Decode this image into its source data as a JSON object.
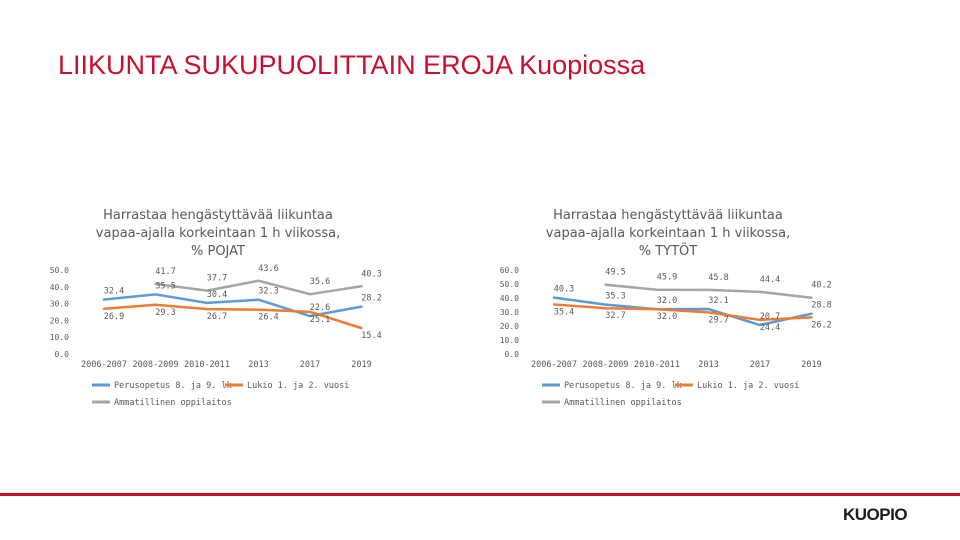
{
  "slide": {
    "title": "LIIKUNTA SUKUPUOLITTAIN EROJA Kuopiossa"
  },
  "brand": {
    "logo_text": "KUOPIO",
    "accent_color": "#c8102e"
  },
  "chart_data": [
    {
      "type": "line",
      "title_lines": [
        "Harrastaa hengästyttävää liikuntaa",
        "vapaa-ajalla korkeintaan 1 h viikossa,",
        "% POJAT"
      ],
      "categories": [
        "2006-2007",
        "2008-2009",
        "2010-2011",
        "2013",
        "2017",
        "2019"
      ],
      "ylim": [
        0,
        50
      ],
      "yticks": [
        "0.0",
        "10.0",
        "20.0",
        "30.0",
        "40.0",
        "50.0"
      ],
      "grid": false,
      "legend_position": "bottom",
      "series": [
        {
          "name": "Perusopetus 8. ja 9. lk",
          "color": "#5b9bd5",
          "values": [
            32.4,
            35.5,
            30.4,
            32.3,
            22.6,
            28.2
          ]
        },
        {
          "name": "Lukio 1. ja 2. vuosi",
          "color": "#ed7d31",
          "values": [
            26.9,
            29.3,
            26.7,
            26.4,
            25.1,
            15.4
          ]
        },
        {
          "name": "Ammatillinen oppilaitos",
          "color": "#a5a5a5",
          "values": [
            null,
            41.7,
            37.7,
            43.6,
            35.6,
            40.3
          ]
        }
      ]
    },
    {
      "type": "line",
      "title_lines": [
        "Harrastaa hengästyttävää liikuntaa",
        "vapaa-ajalla korkeintaan 1 h viikossa,",
        "% TYTÖT"
      ],
      "categories": [
        "2006-2007",
        "2008-2009",
        "2010-2011",
        "2013",
        "2017",
        "2019"
      ],
      "ylim": [
        0,
        60
      ],
      "yticks": [
        "0.0",
        "10.0",
        "20.0",
        "30.0",
        "40.0",
        "50.0",
        "60.0"
      ],
      "grid": false,
      "legend_position": "bottom",
      "series": [
        {
          "name": "Perusopetus 8. ja 9. lk",
          "color": "#5b9bd5",
          "values": [
            40.3,
            35.3,
            32.0,
            32.1,
            20.7,
            28.8
          ]
        },
        {
          "name": "Lukio 1. ja 2. vuosi",
          "color": "#ed7d31",
          "values": [
            35.4,
            32.7,
            32.0,
            29.7,
            24.4,
            26.2
          ]
        },
        {
          "name": "Ammatillinen oppilaitos",
          "color": "#a5a5a5",
          "values": [
            null,
            49.5,
            45.9,
            45.8,
            44.4,
            40.2
          ]
        }
      ]
    }
  ]
}
